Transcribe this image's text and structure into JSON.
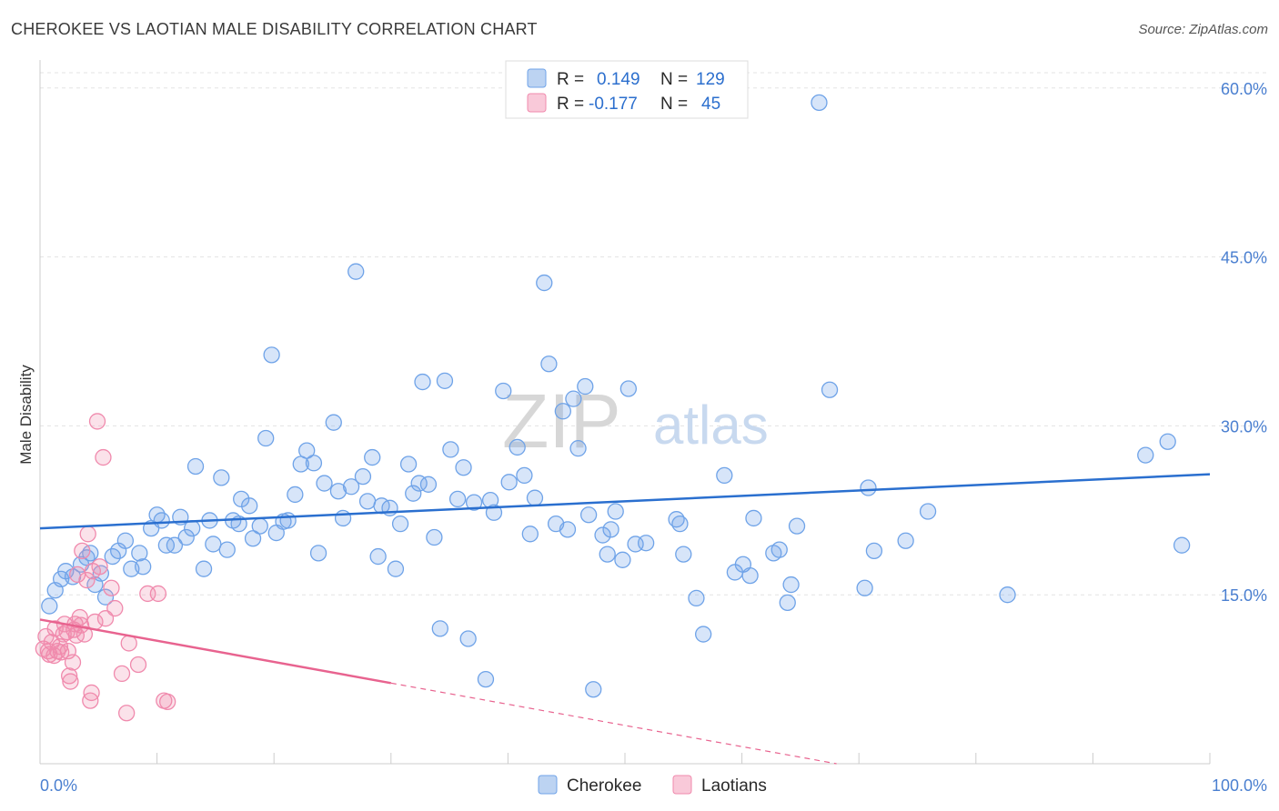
{
  "title": "CHEROKEE VS LAOTIAN MALE DISABILITY CORRELATION CHART",
  "source": "Source: ZipAtlas.com",
  "watermark": {
    "zip": "ZIP",
    "atlas": "atlas"
  },
  "colors": {
    "cherokee": "#6fa3e8",
    "cherokee_line": "#2a6fcf",
    "laotians": "#f08aad",
    "laotians_line": "#e8638f",
    "tick": "#4a7fd0"
  },
  "legend_top": {
    "r_label": "R =",
    "n_label": "N =",
    "rows": [
      {
        "series": "Cherokee",
        "r": "0.149",
        "n": "129"
      },
      {
        "series": "Laotians",
        "r": "-0.177",
        "n": "45"
      }
    ]
  },
  "chart_data": {
    "type": "scatter",
    "title": "CHEROKEE VS LAOTIAN MALE DISABILITY CORRELATION CHART",
    "xlabel": "",
    "ylabel": "Male Disability",
    "xlim": [
      0,
      100
    ],
    "ylim": [
      0,
      62
    ],
    "x_tick_labels": [
      "0.0%",
      "100.0%"
    ],
    "y_ticks": [
      15,
      30,
      45,
      60
    ],
    "y_tick_labels": [
      "15.0%",
      "30.0%",
      "45.0%",
      "60.0%"
    ],
    "grid": true,
    "legend": "bottom-center",
    "series": [
      {
        "name": "Cherokee",
        "trend": {
          "x": [
            0,
            100
          ],
          "y": [
            20.9,
            25.7
          ],
          "solid_to": 100
        },
        "points": [
          [
            0.8,
            14.0
          ],
          [
            1.3,
            15.4
          ],
          [
            1.8,
            16.4
          ],
          [
            2.2,
            17.1
          ],
          [
            2.8,
            16.6
          ],
          [
            3.5,
            17.7
          ],
          [
            4.0,
            18.3
          ],
          [
            4.3,
            18.7
          ],
          [
            4.7,
            15.9
          ],
          [
            5.2,
            16.9
          ],
          [
            5.6,
            14.8
          ],
          [
            6.2,
            18.4
          ],
          [
            6.7,
            18.9
          ],
          [
            7.3,
            19.8
          ],
          [
            7.8,
            17.3
          ],
          [
            8.5,
            18.7
          ],
          [
            8.8,
            17.5
          ],
          [
            9.5,
            20.9
          ],
          [
            10.0,
            22.1
          ],
          [
            10.4,
            21.6
          ],
          [
            10.8,
            19.4
          ],
          [
            11.5,
            19.4
          ],
          [
            12.0,
            21.9
          ],
          [
            12.5,
            20.1
          ],
          [
            13.0,
            20.9
          ],
          [
            13.3,
            26.4
          ],
          [
            14.0,
            17.3
          ],
          [
            14.5,
            21.6
          ],
          [
            14.8,
            19.5
          ],
          [
            15.5,
            25.4
          ],
          [
            16.0,
            19.0
          ],
          [
            16.5,
            21.6
          ],
          [
            17.0,
            21.3
          ],
          [
            17.2,
            23.5
          ],
          [
            17.9,
            22.9
          ],
          [
            18.2,
            20.0
          ],
          [
            18.8,
            21.1
          ],
          [
            19.3,
            28.9
          ],
          [
            19.8,
            36.3
          ],
          [
            20.2,
            20.5
          ],
          [
            20.8,
            21.5
          ],
          [
            21.2,
            21.6
          ],
          [
            21.8,
            23.9
          ],
          [
            22.3,
            26.6
          ],
          [
            22.8,
            27.8
          ],
          [
            23.4,
            26.7
          ],
          [
            23.8,
            18.7
          ],
          [
            24.3,
            24.9
          ],
          [
            25.1,
            30.3
          ],
          [
            25.5,
            24.2
          ],
          [
            25.9,
            21.8
          ],
          [
            26.6,
            24.6
          ],
          [
            27.0,
            43.7
          ],
          [
            27.6,
            25.5
          ],
          [
            28.0,
            23.3
          ],
          [
            28.4,
            27.2
          ],
          [
            28.9,
            18.4
          ],
          [
            29.2,
            22.9
          ],
          [
            29.9,
            22.7
          ],
          [
            30.4,
            17.3
          ],
          [
            30.8,
            21.3
          ],
          [
            31.5,
            26.6
          ],
          [
            31.9,
            24.0
          ],
          [
            32.4,
            24.9
          ],
          [
            32.7,
            33.9
          ],
          [
            33.2,
            24.8
          ],
          [
            33.7,
            20.1
          ],
          [
            34.2,
            12.0
          ],
          [
            34.6,
            34.0
          ],
          [
            35.1,
            27.9
          ],
          [
            35.7,
            23.5
          ],
          [
            36.2,
            26.3
          ],
          [
            36.6,
            11.1
          ],
          [
            37.1,
            23.2
          ],
          [
            38.1,
            7.5
          ],
          [
            38.5,
            23.4
          ],
          [
            38.8,
            22.3
          ],
          [
            39.6,
            33.1
          ],
          [
            40.1,
            25.0
          ],
          [
            40.8,
            28.1
          ],
          [
            41.4,
            25.6
          ],
          [
            41.9,
            20.4
          ],
          [
            42.3,
            23.6
          ],
          [
            43.1,
            42.7
          ],
          [
            43.5,
            35.5
          ],
          [
            44.1,
            21.3
          ],
          [
            44.7,
            31.3
          ],
          [
            45.1,
            20.8
          ],
          [
            45.6,
            32.4
          ],
          [
            46.0,
            28.0
          ],
          [
            46.6,
            33.5
          ],
          [
            46.9,
            22.1
          ],
          [
            47.3,
            6.6
          ],
          [
            48.1,
            20.3
          ],
          [
            48.5,
            18.6
          ],
          [
            48.8,
            20.8
          ],
          [
            49.2,
            22.4
          ],
          [
            49.8,
            18.1
          ],
          [
            50.3,
            33.3
          ],
          [
            50.9,
            19.5
          ],
          [
            51.8,
            19.6
          ],
          [
            54.4,
            21.7
          ],
          [
            54.7,
            21.3
          ],
          [
            55.0,
            18.6
          ],
          [
            56.1,
            14.7
          ],
          [
            56.7,
            11.5
          ],
          [
            58.5,
            25.6
          ],
          [
            59.4,
            17.0
          ],
          [
            60.1,
            17.7
          ],
          [
            60.7,
            16.7
          ],
          [
            61.0,
            21.8
          ],
          [
            62.7,
            18.7
          ],
          [
            63.2,
            19.0
          ],
          [
            63.9,
            14.3
          ],
          [
            64.2,
            15.9
          ],
          [
            64.7,
            21.1
          ],
          [
            66.6,
            58.7
          ],
          [
            67.5,
            33.2
          ],
          [
            70.5,
            15.6
          ],
          [
            70.8,
            24.5
          ],
          [
            71.3,
            18.9
          ],
          [
            74.0,
            19.8
          ],
          [
            75.9,
            22.4
          ],
          [
            82.7,
            15.0
          ],
          [
            94.5,
            27.4
          ],
          [
            96.4,
            28.6
          ],
          [
            97.6,
            19.4
          ]
        ]
      },
      {
        "name": "Laotians",
        "trend": {
          "x": [
            0,
            100
          ],
          "y": [
            12.8,
            -6.0
          ],
          "solid_to": 30
        },
        "points": [
          [
            0.3,
            10.2
          ],
          [
            0.5,
            11.3
          ],
          [
            0.7,
            10.0
          ],
          [
            0.8,
            9.7
          ],
          [
            1.0,
            10.8
          ],
          [
            1.2,
            9.6
          ],
          [
            1.3,
            12.0
          ],
          [
            1.5,
            10.0
          ],
          [
            1.7,
            10.4
          ],
          [
            1.8,
            9.9
          ],
          [
            2.0,
            11.5
          ],
          [
            2.1,
            12.4
          ],
          [
            2.3,
            11.7
          ],
          [
            2.4,
            10.0
          ],
          [
            2.5,
            7.8
          ],
          [
            2.6,
            7.3
          ],
          [
            2.8,
            9.0
          ],
          [
            2.9,
            11.9
          ],
          [
            3.0,
            12.4
          ],
          [
            3.1,
            11.4
          ],
          [
            3.2,
            16.8
          ],
          [
            3.4,
            13.0
          ],
          [
            3.5,
            12.3
          ],
          [
            3.6,
            18.9
          ],
          [
            3.8,
            11.5
          ],
          [
            4.0,
            16.3
          ],
          [
            4.1,
            20.4
          ],
          [
            4.3,
            5.6
          ],
          [
            4.4,
            6.3
          ],
          [
            4.5,
            17.1
          ],
          [
            4.7,
            12.6
          ],
          [
            4.9,
            30.4
          ],
          [
            5.1,
            17.5
          ],
          [
            5.4,
            27.2
          ],
          [
            5.6,
            12.9
          ],
          [
            6.1,
            15.6
          ],
          [
            6.4,
            13.8
          ],
          [
            7.0,
            8.0
          ],
          [
            7.4,
            4.5
          ],
          [
            7.6,
            10.7
          ],
          [
            8.4,
            8.8
          ],
          [
            9.2,
            15.1
          ],
          [
            10.1,
            15.1
          ],
          [
            10.6,
            5.6
          ],
          [
            10.9,
            5.5
          ]
        ]
      }
    ]
  }
}
